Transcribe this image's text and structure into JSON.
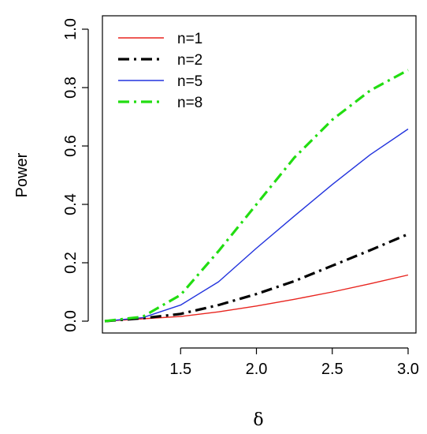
{
  "chart_data": {
    "type": "line",
    "title": "",
    "xlabel": "δ",
    "ylabel": "Power",
    "xlim": [
      1.0,
      3.0
    ],
    "ylim": [
      0.0,
      1.0
    ],
    "x_ticks": [
      "1.5",
      "2.0",
      "2.5",
      "3.0"
    ],
    "y_ticks": [
      "0.0",
      "0.2",
      "0.4",
      "0.6",
      "0.8",
      "1.0"
    ],
    "x_tick_values": [
      1.5,
      2.0,
      2.5,
      3.0
    ],
    "y_tick_values": [
      0.0,
      0.2,
      0.4,
      0.6,
      0.8,
      1.0
    ],
    "grid": false,
    "legend_position": "top-left",
    "x": [
      1.0,
      1.25,
      1.5,
      1.75,
      2.0,
      2.25,
      2.5,
      2.75,
      3.0
    ],
    "series": [
      {
        "name": "n=1",
        "color": "#e8251f",
        "dash": "solid",
        "width": 1.4,
        "values": [
          0.0,
          0.008,
          0.016,
          0.032,
          0.052,
          0.075,
          0.1,
          0.128,
          0.158
        ]
      },
      {
        "name": "n=2",
        "color": "#000000",
        "dash": "dashdot",
        "width": 3.2,
        "values": [
          0.0,
          0.01,
          0.025,
          0.055,
          0.093,
          0.137,
          0.19,
          0.243,
          0.298
        ]
      },
      {
        "name": "n=5",
        "color": "#2233dd",
        "dash": "solid",
        "width": 1.4,
        "values": [
          0.0,
          0.012,
          0.055,
          0.135,
          0.25,
          0.36,
          0.468,
          0.57,
          0.658
        ]
      },
      {
        "name": "n=8",
        "color": "#22dd11",
        "dash": "dashdot",
        "width": 3.2,
        "values": [
          0.0,
          0.015,
          0.09,
          0.24,
          0.4,
          0.56,
          0.69,
          0.79,
          0.86
        ]
      }
    ]
  }
}
